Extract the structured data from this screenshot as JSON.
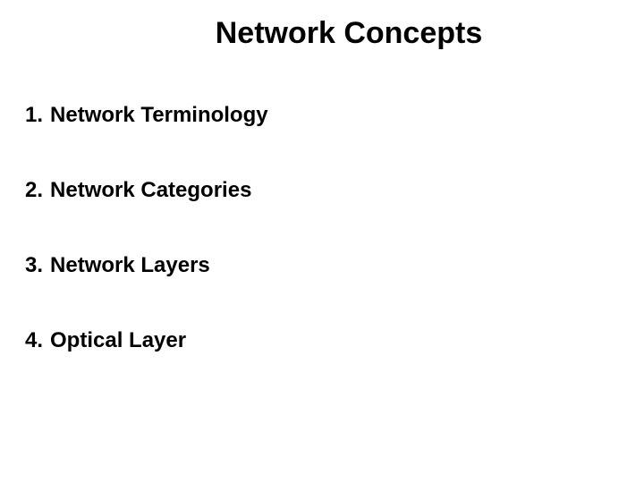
{
  "slide": {
    "title": "Network Concepts",
    "items": [
      {
        "number": "1.",
        "label": "Network Terminology"
      },
      {
        "number": "2.",
        "label": "Network Categories"
      },
      {
        "number": "3.",
        "label": "Network Layers"
      },
      {
        "number": "4.",
        "label": "Optical Layer"
      }
    ],
    "background_color": "#ffffff",
    "text_color": "#000000",
    "title_fontsize": 34,
    "item_fontsize": 24,
    "font_family": "Arial"
  }
}
